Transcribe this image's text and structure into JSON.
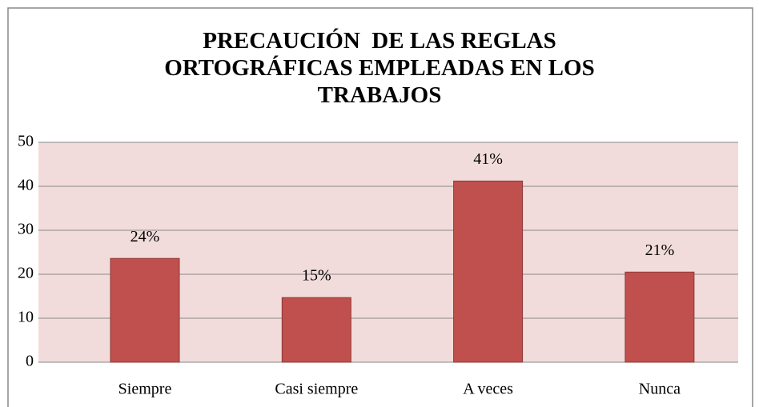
{
  "chart_data": {
    "type": "bar",
    "title": "PRECAUCIÓN  DE LAS REGLAS ORTOGRÁFICAS EMPLEADAS EN LOS TRABAJOS",
    "categories": [
      "Siempre",
      "Casi siempre",
      "A veces",
      "Nunca"
    ],
    "values": [
      23.6,
      14.7,
      41.2,
      20.5
    ],
    "value_labels": [
      "24%",
      "15%",
      "41%",
      "21%"
    ],
    "color": "#c0504d",
    "ylim": [
      0,
      50
    ],
    "yticks": [
      0,
      10,
      20,
      30,
      40,
      50
    ],
    "grid": true
  }
}
